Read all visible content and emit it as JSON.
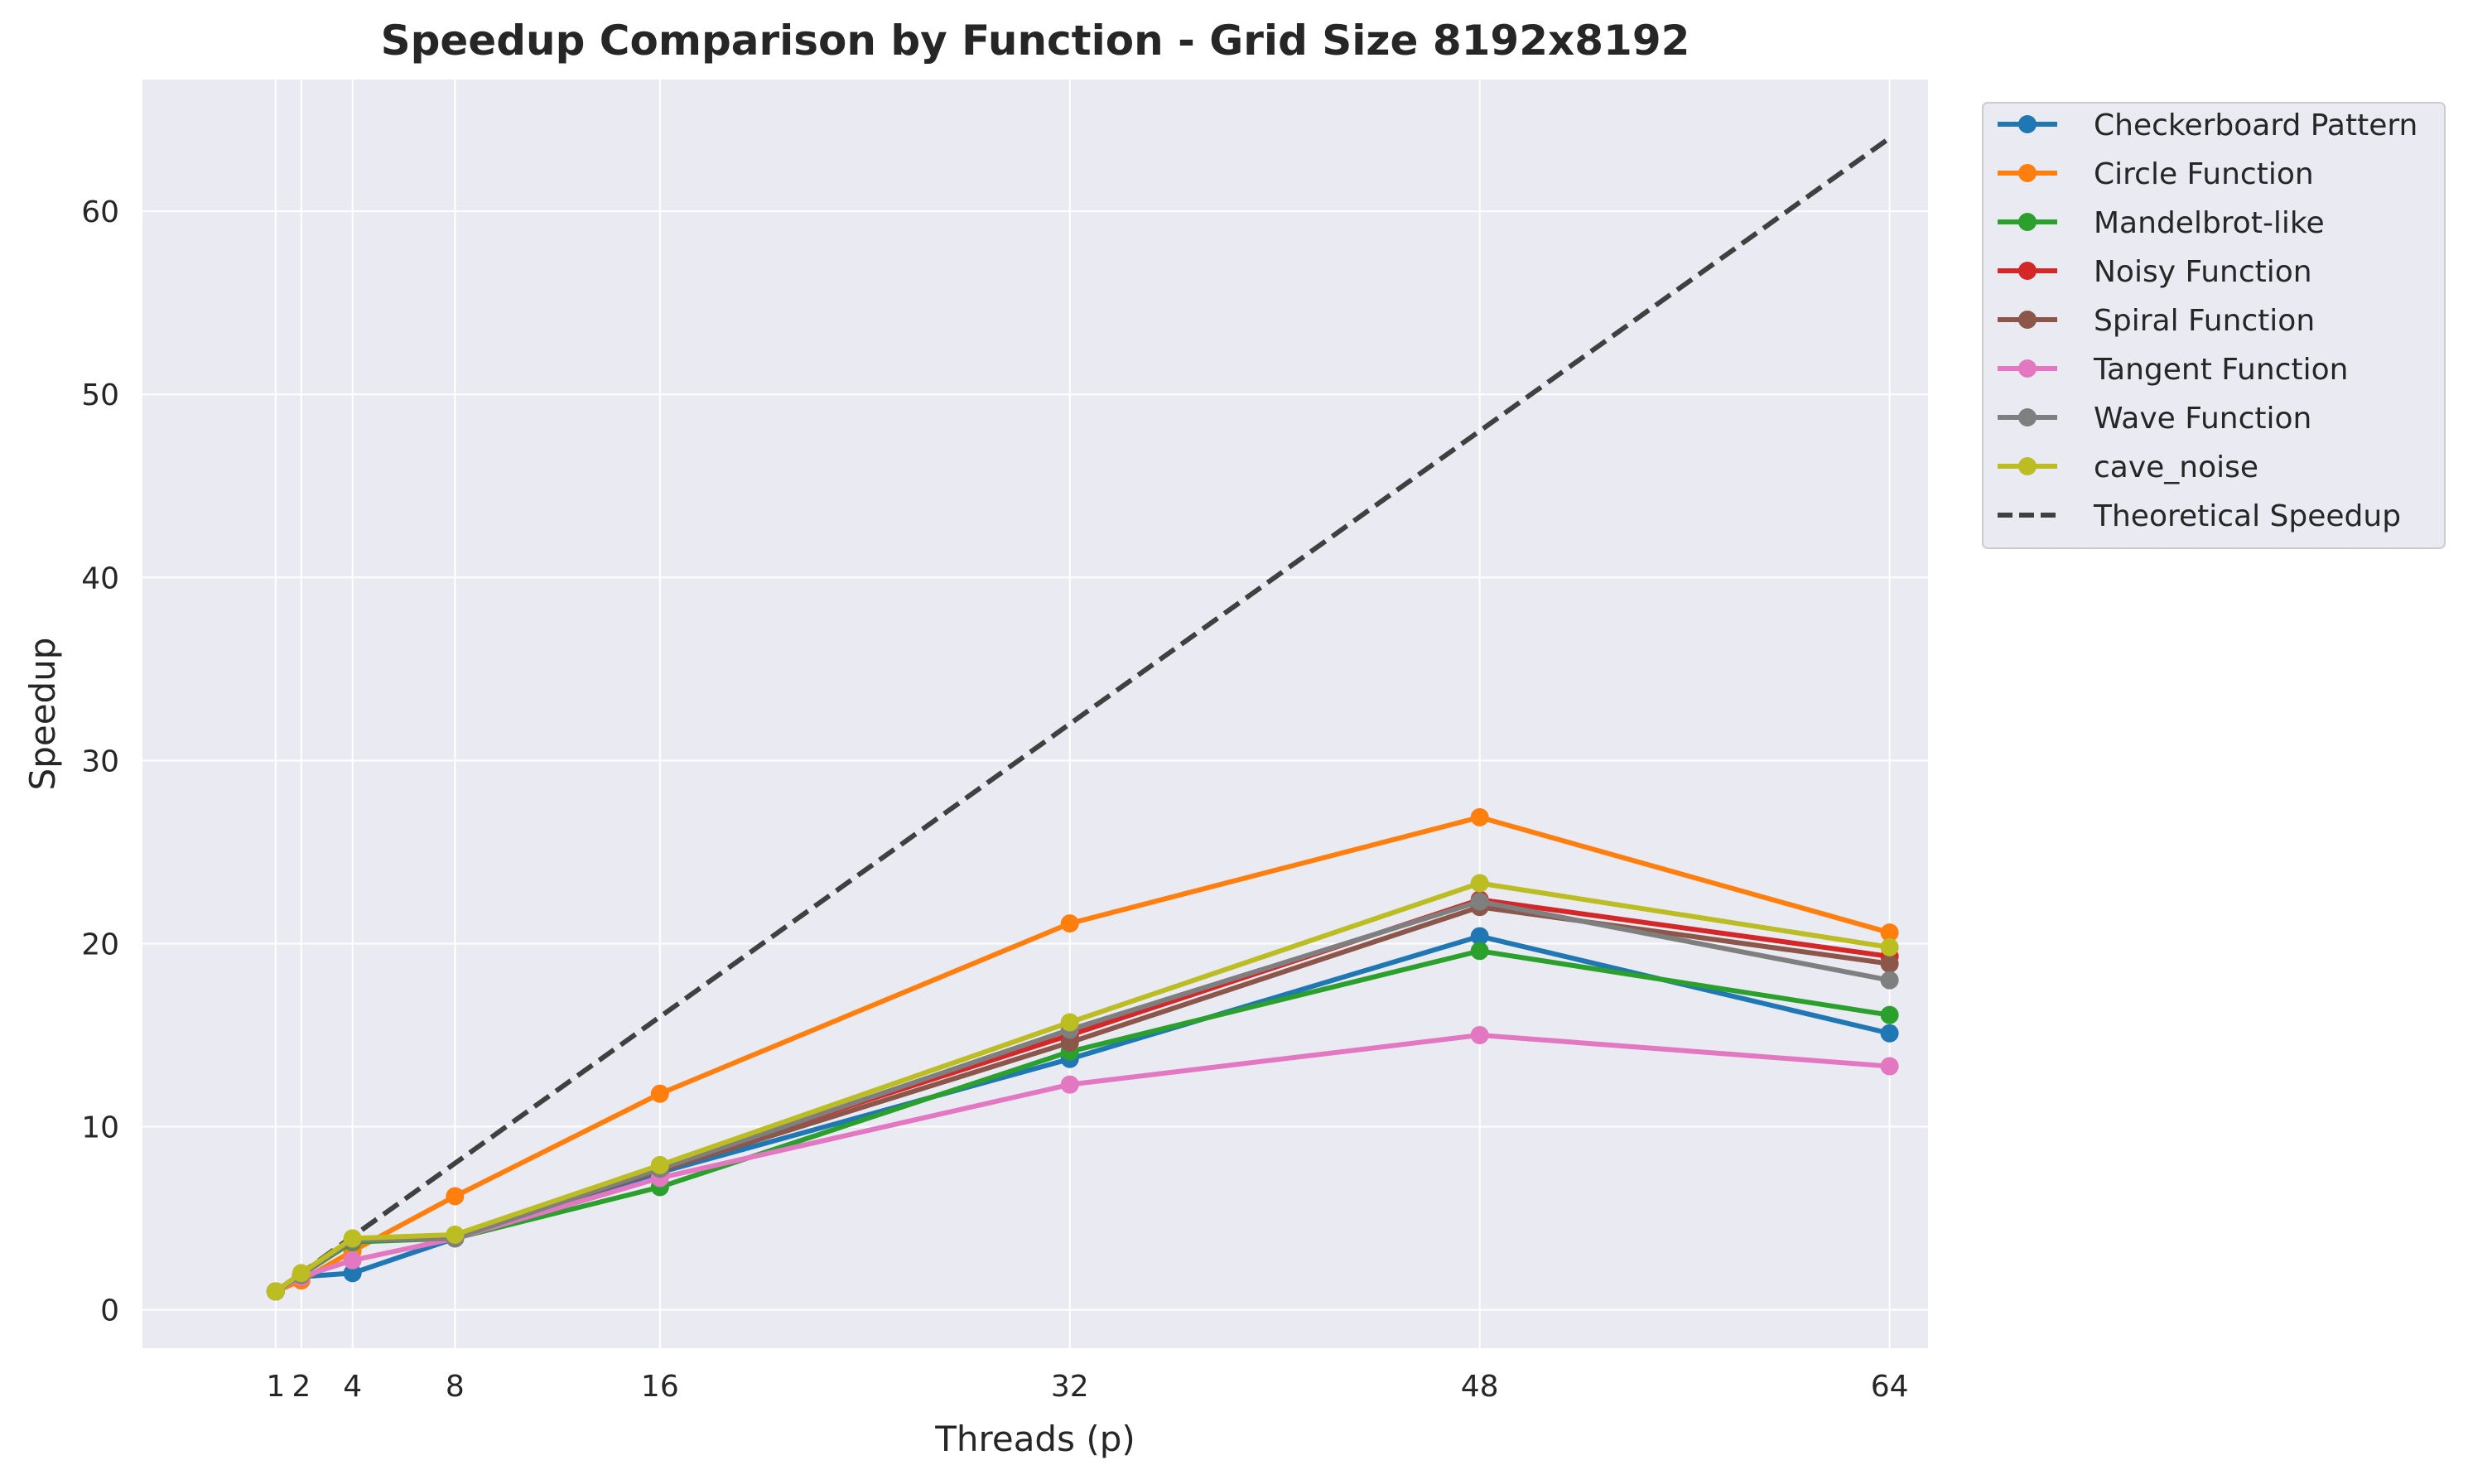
{
  "chart_data": {
    "type": "line",
    "title": "Speedup Comparison by Function - Grid Size 8192x8192",
    "xlabel": "Threads (p)",
    "ylabel": "Speedup",
    "x": [
      1,
      2,
      4,
      8,
      16,
      32,
      48,
      64
    ],
    "xticks": [
      1,
      2,
      4,
      8,
      16,
      32,
      48,
      64
    ],
    "xtick_labels": [
      "1",
      "2",
      "4",
      "8",
      "16",
      "32",
      "48",
      "64"
    ],
    "yticks": [
      0,
      10,
      20,
      30,
      40,
      50,
      60
    ],
    "ytick_labels": [
      "0",
      "10",
      "20",
      "30",
      "40",
      "50",
      "60"
    ],
    "xlim": [
      -4.2,
      65.5
    ],
    "ylim": [
      -2.1,
      67.2
    ],
    "grid": true,
    "legend_position": "outside-right",
    "series": [
      {
        "name": "Checkerboard Pattern",
        "color": "#1f77b4",
        "values": [
          1.0,
          1.8,
          2.0,
          3.9,
          7.5,
          13.7,
          20.4,
          15.1
        ]
      },
      {
        "name": "Circle Function",
        "color": "#ff7f0e",
        "values": [
          1.0,
          1.6,
          3.2,
          6.2,
          11.8,
          21.1,
          26.9,
          20.6
        ]
      },
      {
        "name": "Mandelbrot-like",
        "color": "#2ca02c",
        "values": [
          1.0,
          1.9,
          3.7,
          3.9,
          6.7,
          14.1,
          19.6,
          16.1
        ]
      },
      {
        "name": "Noisy Function",
        "color": "#d62728",
        "values": [
          1.0,
          1.9,
          3.8,
          4.0,
          7.8,
          15.0,
          22.4,
          19.3
        ]
      },
      {
        "name": "Spiral Function",
        "color": "#8c564b",
        "values": [
          1.0,
          1.9,
          3.8,
          4.0,
          7.6,
          14.6,
          22.0,
          18.9
        ]
      },
      {
        "name": "Tangent Function",
        "color": "#e377c2",
        "values": [
          1.0,
          1.8,
          2.7,
          3.9,
          7.2,
          12.3,
          15.0,
          13.3
        ]
      },
      {
        "name": "Wave Function",
        "color": "#7f7f7f",
        "values": [
          1.0,
          1.9,
          3.8,
          3.9,
          7.7,
          15.3,
          22.3,
          18.0
        ]
      },
      {
        "name": "cave_noise",
        "color": "#bcbd22",
        "values": [
          1.0,
          2.0,
          3.9,
          4.1,
          7.9,
          15.7,
          23.3,
          19.8
        ]
      }
    ],
    "reference_line": {
      "name": "Theoretical Speedup",
      "color": "#404040",
      "style": "dashed",
      "values": [
        1,
        2,
        4,
        8,
        16,
        32,
        48,
        64
      ]
    }
  }
}
